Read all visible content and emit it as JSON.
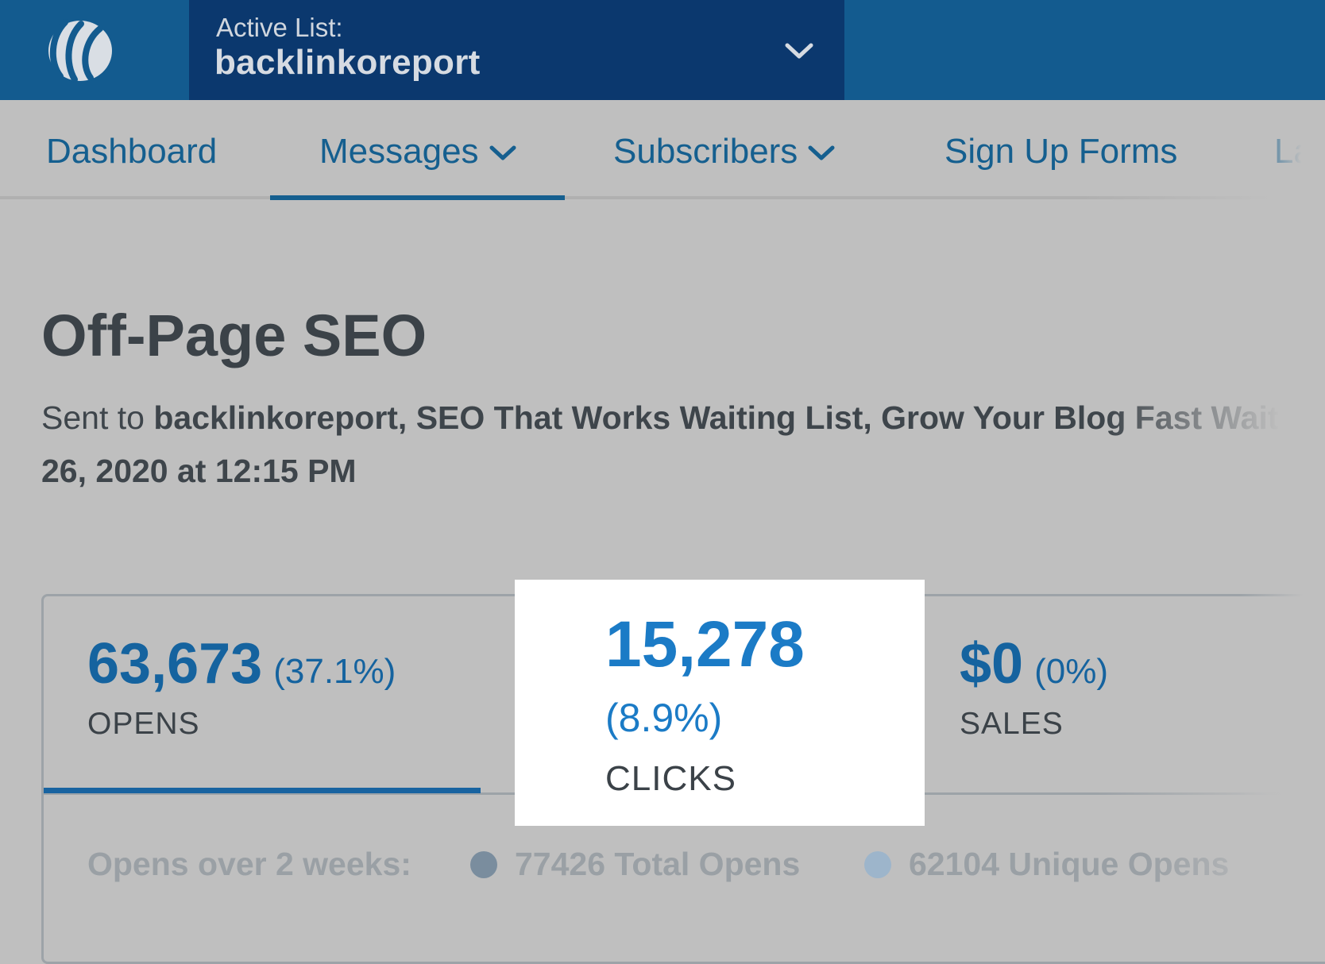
{
  "header": {
    "active_list_label": "Active List:",
    "active_list_name": "backlinkoreport"
  },
  "nav": {
    "items": [
      {
        "label": "Dashboard"
      },
      {
        "label": "Messages"
      },
      {
        "label": "Subscribers"
      },
      {
        "label": "Sign Up Forms"
      },
      {
        "label": "La"
      }
    ]
  },
  "message": {
    "title": "Off-Page SEO",
    "sent_prefix": "Sent to",
    "sent_lists": "backlinkoreport, SEO That Works Waiting List, Grow Your Blog Fast Waitin",
    "sent_date": "26, 2020 at 12:15 PM"
  },
  "stats": {
    "opens": {
      "value": "63,673",
      "pct": "(37.1%)",
      "label": "OPENS"
    },
    "clicks": {
      "value": "15,278",
      "pct": "(8.9%)",
      "label": "CLICKS"
    },
    "sales": {
      "value": "$0",
      "pct": "(0%)",
      "label": "SALES"
    }
  },
  "chart_legend": {
    "title": "Opens over 2 weeks:",
    "items": [
      {
        "label": "77426 Total Opens",
        "color": "#7a8d9e"
      },
      {
        "label": "62104 Unique Opens",
        "color": "#9db5cb"
      }
    ]
  },
  "colors": {
    "header_bg": "#135b8f",
    "active_list_bg": "#0b386e",
    "accent": "#15639f",
    "highlight_value": "#1b7bc6"
  }
}
